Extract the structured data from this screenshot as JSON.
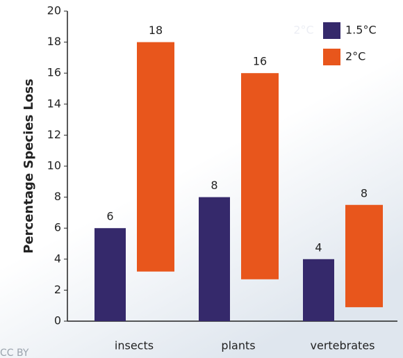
{
  "chart_data": {
    "type": "bar",
    "y_label": "Percentage Species Loss",
    "categories": [
      "insects",
      "plants",
      "vertebrates"
    ],
    "series": [
      {
        "name": "1.5°C",
        "color": "#35296b",
        "values": [
          6,
          8,
          4
        ]
      },
      {
        "name": "2°C",
        "color": "#e8561c",
        "values": [
          18,
          16,
          7.5
        ],
        "low": [
          3.2,
          2.7,
          0.9
        ],
        "value_labels": [
          "18",
          "16",
          "8"
        ]
      }
    ],
    "ylim": [
      0,
      20
    ],
    "yticks": [
      0,
      2,
      4,
      6,
      8,
      10,
      12,
      14,
      16,
      18,
      20
    ],
    "legend": "upper right",
    "annotations": [
      "2°C",
      "CC BY"
    ]
  }
}
